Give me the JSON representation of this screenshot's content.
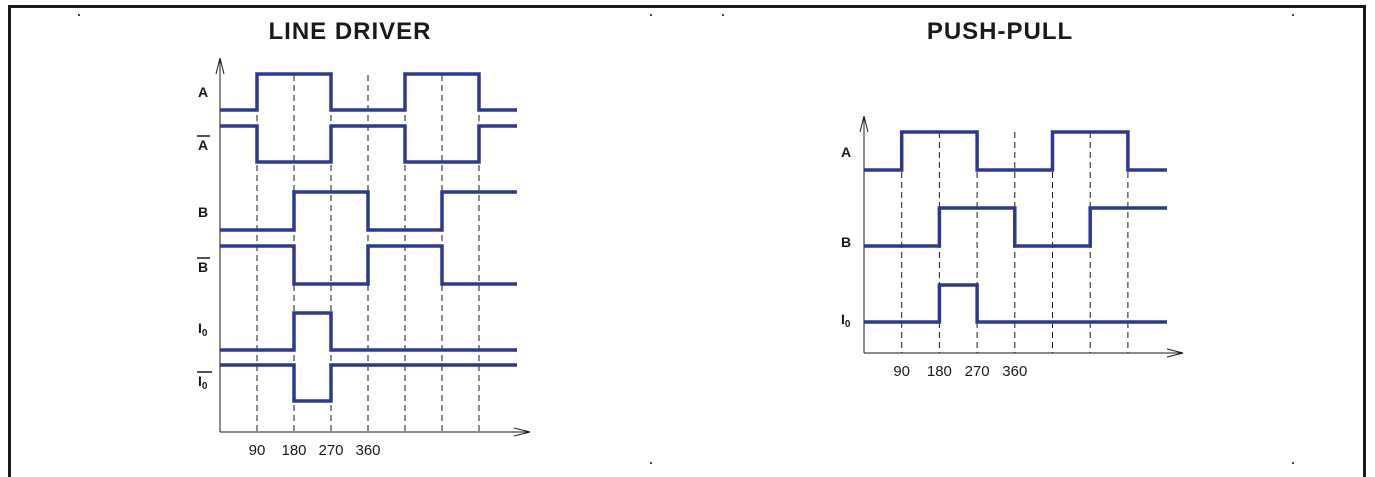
{
  "line_driver": {
    "title": "LINE DRIVER",
    "signals": [
      "A",
      "A",
      "B",
      "B",
      "I0",
      "I0"
    ],
    "signal_labels": [
      {
        "main": "A",
        "sub": "",
        "overbar": false
      },
      {
        "main": "A",
        "sub": "",
        "overbar": true
      },
      {
        "main": "B",
        "sub": "",
        "overbar": false
      },
      {
        "main": "B",
        "sub": "",
        "overbar": true
      },
      {
        "main": "I",
        "sub": "0",
        "overbar": false
      },
      {
        "main": "I",
        "sub": "0",
        "overbar": true
      }
    ],
    "tick_labels": [
      "90",
      "180",
      "270",
      "360"
    ]
  },
  "push_pull": {
    "title": "PUSH-PULL",
    "signal_labels": [
      {
        "main": "A",
        "sub": "",
        "overbar": false
      },
      {
        "main": "B",
        "sub": "",
        "overbar": false
      },
      {
        "main": "I",
        "sub": "0",
        "overbar": false
      }
    ],
    "tick_labels": [
      "90",
      "180",
      "270",
      "360"
    ]
  },
  "colors": {
    "signal": "#2b3990",
    "axis": "#1a1a1a",
    "frame": "#1a1a1a"
  },
  "waveforms": {
    "phase_step_deg": 90,
    "A": [
      0,
      1,
      1,
      0,
      0,
      1,
      1,
      0
    ],
    "Abar": [
      1,
      0,
      0,
      1,
      1,
      0,
      0,
      1
    ],
    "B": [
      0,
      0,
      1,
      1,
      0,
      0,
      1,
      1
    ],
    "Bbar": [
      1,
      1,
      0,
      0,
      1,
      1,
      0,
      0
    ],
    "I0": [
      0,
      0,
      1,
      0,
      0,
      0,
      0,
      0
    ],
    "I0bar": [
      1,
      1,
      0,
      1,
      1,
      1,
      1,
      1
    ]
  }
}
